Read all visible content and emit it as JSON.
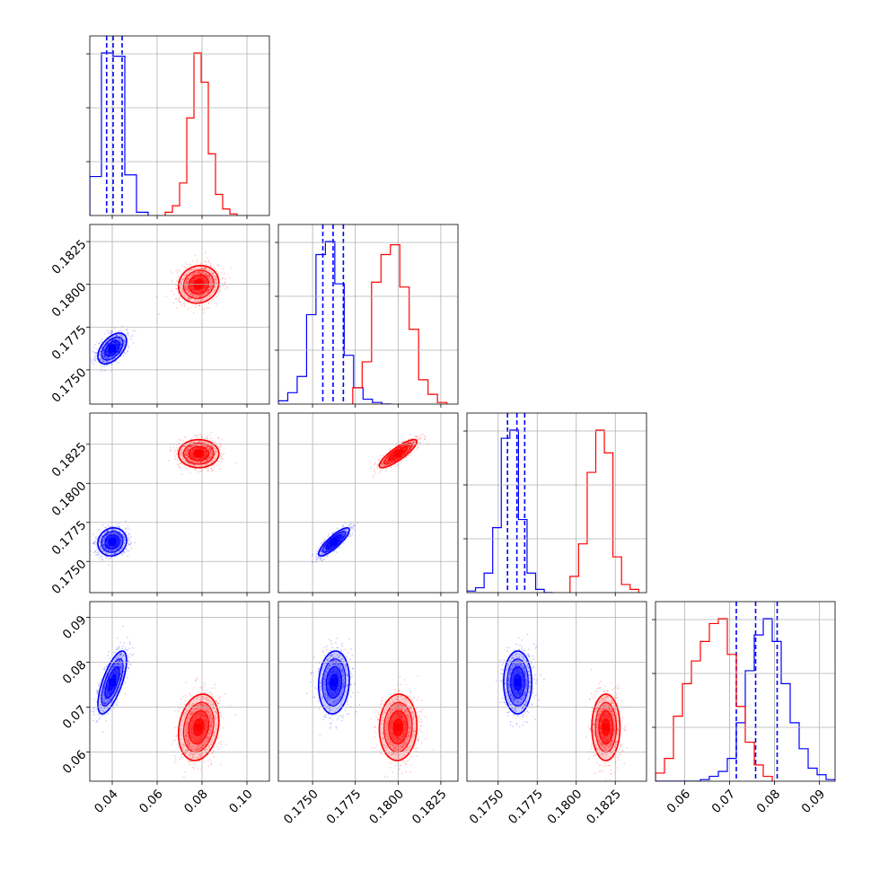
{
  "chart_data": {
    "type": "corner",
    "parameters": [
      {
        "index": 0,
        "range": [
          0.03,
          0.11
        ],
        "ticks": [
          0.04,
          0.06,
          0.08,
          0.1
        ],
        "tick_labels": [
          "0.04",
          "0.06",
          "0.08",
          "0.10"
        ]
      },
      {
        "index": 1,
        "range": [
          0.173,
          0.1835
        ],
        "ticks": [
          0.175,
          0.1775,
          0.18,
          0.1825
        ],
        "tick_labels": [
          "0.1750",
          "0.1775",
          "0.1800",
          "0.1825"
        ]
      },
      {
        "index": 2,
        "range": [
          0.173,
          0.1845
        ],
        "ticks": [
          0.175,
          0.1775,
          0.18,
          0.1825
        ],
        "tick_labels": [
          "0.1750",
          "0.1775",
          "0.1800",
          "0.1825"
        ]
      },
      {
        "index": 3,
        "range": [
          0.0535,
          0.0935
        ],
        "ticks": [
          0.06,
          0.07,
          0.08,
          0.09
        ],
        "tick_labels": [
          "0.06",
          "0.07",
          "0.08",
          "0.09"
        ]
      }
    ],
    "grid": true,
    "series": [
      {
        "color": "#0000ff",
        "mean": [
          0.04,
          0.17625,
          0.17625,
          0.0755
        ],
        "std": [
          0.0032,
          0.00045,
          0.00045,
          0.0035
        ],
        "corr": {
          "0-1": 0.5,
          "0-2": 0.1,
          "1-2": 0.85,
          "0-3": 0.7,
          "1-3": 0.1,
          "2-3": 0.0
        },
        "histograms": [
          {
            "bins": [
              0.03,
              0.0352,
              0.0404,
              0.0456,
              0.0508,
              0.056
            ],
            "counts": [
              0.24,
              1.0,
              0.98,
              0.25,
              0.02
            ]
          },
          {
            "bins": [
              0.173,
              0.17355,
              0.1741,
              0.17465,
              0.1752,
              0.17575,
              0.1763,
              0.17685,
              0.1774,
              0.17795,
              0.1785,
              0.17905,
              0.1796
            ],
            "counts": [
              0.02,
              0.07,
              0.17,
              0.55,
              0.92,
              1.0,
              0.74,
              0.3,
              0.1,
              0.03,
              0.01,
              0.0
            ]
          },
          {
            "bins": [
              0.173,
              0.17355,
              0.1741,
              0.17465,
              0.1752,
              0.17575,
              0.1763,
              0.17685,
              0.1774,
              0.17795,
              0.1785
            ],
            "counts": [
              0.01,
              0.03,
              0.12,
              0.4,
              0.95,
              1.0,
              0.45,
              0.12,
              0.02,
              0.0
            ]
          },
          {
            "bins": [
              0.0535,
              0.0555,
              0.0575,
              0.0595,
              0.0615,
              0.0635,
              0.0655,
              0.0675,
              0.0695,
              0.0715,
              0.0735,
              0.0755,
              0.0775,
              0.0795,
              0.0815,
              0.0835,
              0.0855,
              0.0875,
              0.0895,
              0.0915,
              0.0935
            ],
            "counts": [
              0.0,
              0.0,
              0.0,
              0.0,
              0.0,
              0.01,
              0.03,
              0.06,
              0.14,
              0.36,
              0.68,
              0.9,
              1.0,
              0.86,
              0.6,
              0.36,
              0.2,
              0.08,
              0.04,
              0.01
            ]
          }
        ],
        "quantiles": [
          [
            0.0375,
            0.0404,
            0.0444
          ],
          [
            0.1756,
            0.1762,
            0.1768
          ],
          [
            0.1756,
            0.1762,
            0.1767
          ],
          [
            0.0715,
            0.0758,
            0.0806
          ]
        ]
      },
      {
        "color": "#ff0000",
        "mean": [
          0.0785,
          0.18,
          0.1819,
          0.0655
        ],
        "std": [
          0.0045,
          0.00055,
          0.00045,
          0.0037
        ],
        "corr": {
          "0-1": 0.1,
          "0-2": 0.0,
          "1-2": 0.85,
          "0-3": 0.2,
          "1-3": 0.05,
          "2-3": 0.0
        },
        "histograms": [
          {
            "bins": [
              0.0636,
              0.0668,
              0.07,
              0.0732,
              0.0764,
              0.0796,
              0.0828,
              0.086,
              0.0892,
              0.0924,
              0.0956
            ],
            "counts": [
              0.02,
              0.06,
              0.2,
              0.6,
              1.0,
              0.82,
              0.38,
              0.13,
              0.04,
              0.01
            ]
          },
          {
            "bins": [
              0.17735,
              0.1779,
              0.17845,
              0.179,
              0.17955,
              0.1801,
              0.18065,
              0.1812,
              0.18175,
              0.1823,
              0.18285
            ],
            "counts": [
              0.1,
              0.26,
              0.75,
              0.92,
              0.98,
              0.72,
              0.46,
              0.15,
              0.06,
              0.01
            ]
          },
          {
            "bins": [
              0.1796,
              0.18015,
              0.1807,
              0.18125,
              0.1818,
              0.18235,
              0.1829,
              0.18345,
              0.184
            ],
            "counts": [
              0.1,
              0.3,
              0.74,
              1.0,
              0.86,
              0.22,
              0.05,
              0.02
            ]
          },
          {
            "bins": [
              0.0535,
              0.0555,
              0.0575,
              0.0595,
              0.0615,
              0.0635,
              0.0655,
              0.0675,
              0.0695,
              0.0715,
              0.0735,
              0.0755,
              0.0775,
              0.0795
            ],
            "counts": [
              0.05,
              0.14,
              0.4,
              0.6,
              0.74,
              0.86,
              0.97,
              1.0,
              0.78,
              0.46,
              0.24,
              0.1,
              0.03
            ]
          }
        ],
        "quantiles": []
      }
    ]
  }
}
